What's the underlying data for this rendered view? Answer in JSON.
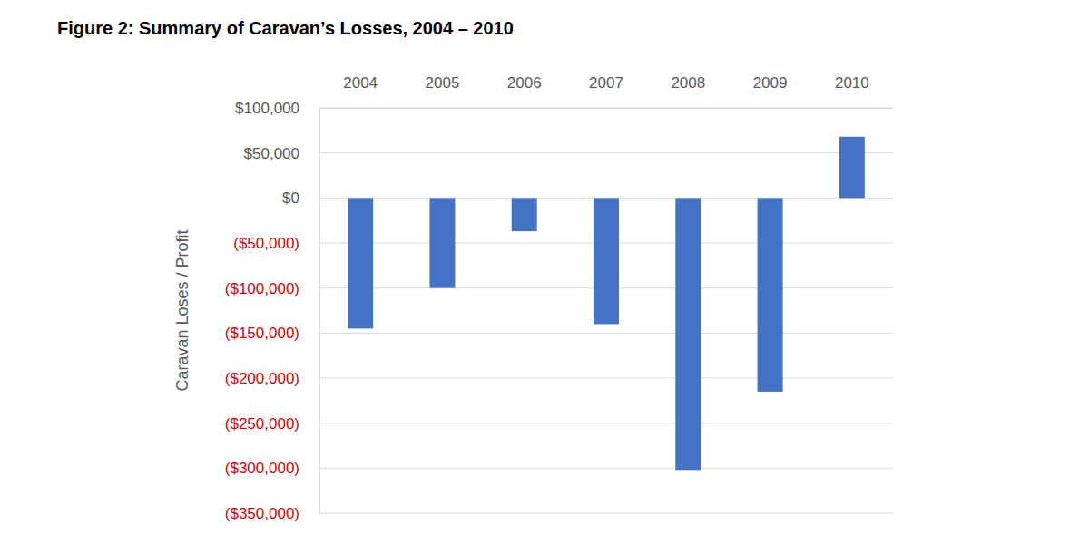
{
  "chart_data": {
    "type": "bar",
    "title": "Figure 2: Summary of Caravan’s Losses, 2004 – 2010",
    "y_label": "Caravan Loses / Profit",
    "categories": [
      "2004",
      "2005",
      "2006",
      "2007",
      "2008",
      "2009",
      "2010"
    ],
    "values": [
      -145000,
      -100000,
      -37000,
      -140000,
      -302000,
      -215000,
      68000
    ],
    "color": "#4472c4",
    "ylim": [
      -350000,
      100000
    ],
    "yticks": [
      {
        "value": 100000,
        "label": "$100,000"
      },
      {
        "value": 50000,
        "label": "$50,000"
      },
      {
        "value": 0,
        "label": "$0"
      },
      {
        "value": -50000,
        "label": "($50,000)"
      },
      {
        "value": -100000,
        "label": "($100,000)"
      },
      {
        "value": -150000,
        "label": "($150,000)"
      },
      {
        "value": -200000,
        "label": "($200,000)"
      },
      {
        "value": -250000,
        "label": "($250,000)"
      },
      {
        "value": -300000,
        "label": "($300,000)"
      },
      {
        "value": -350000,
        "label": "($350,000)"
      }
    ],
    "grid": true
  }
}
